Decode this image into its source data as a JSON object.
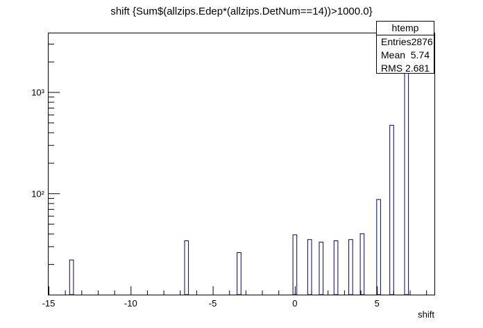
{
  "chart_data": {
    "type": "bar",
    "title": "shift {Sum$(allzips.Edep*(allzips.DetNum==14))>1000.0}",
    "xlabel": "shift",
    "ylabel": "",
    "xlim": [
      -15,
      8.5
    ],
    "ylim": [
      10,
      3800
    ],
    "log_y": true,
    "grid": false,
    "x_ticks": [
      -15,
      -10,
      -5,
      0,
      5
    ],
    "x_tick_labels": [
      "-15",
      "-10",
      "-5",
      "0",
      "5"
    ],
    "y_ticks": [
      100,
      1000
    ],
    "y_tick_labels": [
      "10²",
      "10³"
    ],
    "bin_width": 0.235,
    "bars": [
      {
        "x": -13.6,
        "y": 22
      },
      {
        "x": -6.6,
        "y": 34
      },
      {
        "x": -3.4,
        "y": 26
      },
      {
        "x": 0.0,
        "y": 39
      },
      {
        "x": 0.9,
        "y": 35
      },
      {
        "x": 1.6,
        "y": 33
      },
      {
        "x": 2.5,
        "y": 34
      },
      {
        "x": 3.4,
        "y": 35
      },
      {
        "x": 4.1,
        "y": 40
      },
      {
        "x": 5.1,
        "y": 87
      },
      {
        "x": 5.9,
        "y": 470
      },
      {
        "x": 6.8,
        "y": 1800
      }
    ],
    "colors": {
      "bar_line": "#000080",
      "axis": "#000000"
    }
  },
  "stats_box": {
    "title": "htemp",
    "rows": [
      {
        "label": "Entries",
        "value": "2876"
      },
      {
        "label": "Mean",
        "value": "5.74"
      },
      {
        "label": "RMS",
        "value": "2.681"
      }
    ]
  }
}
